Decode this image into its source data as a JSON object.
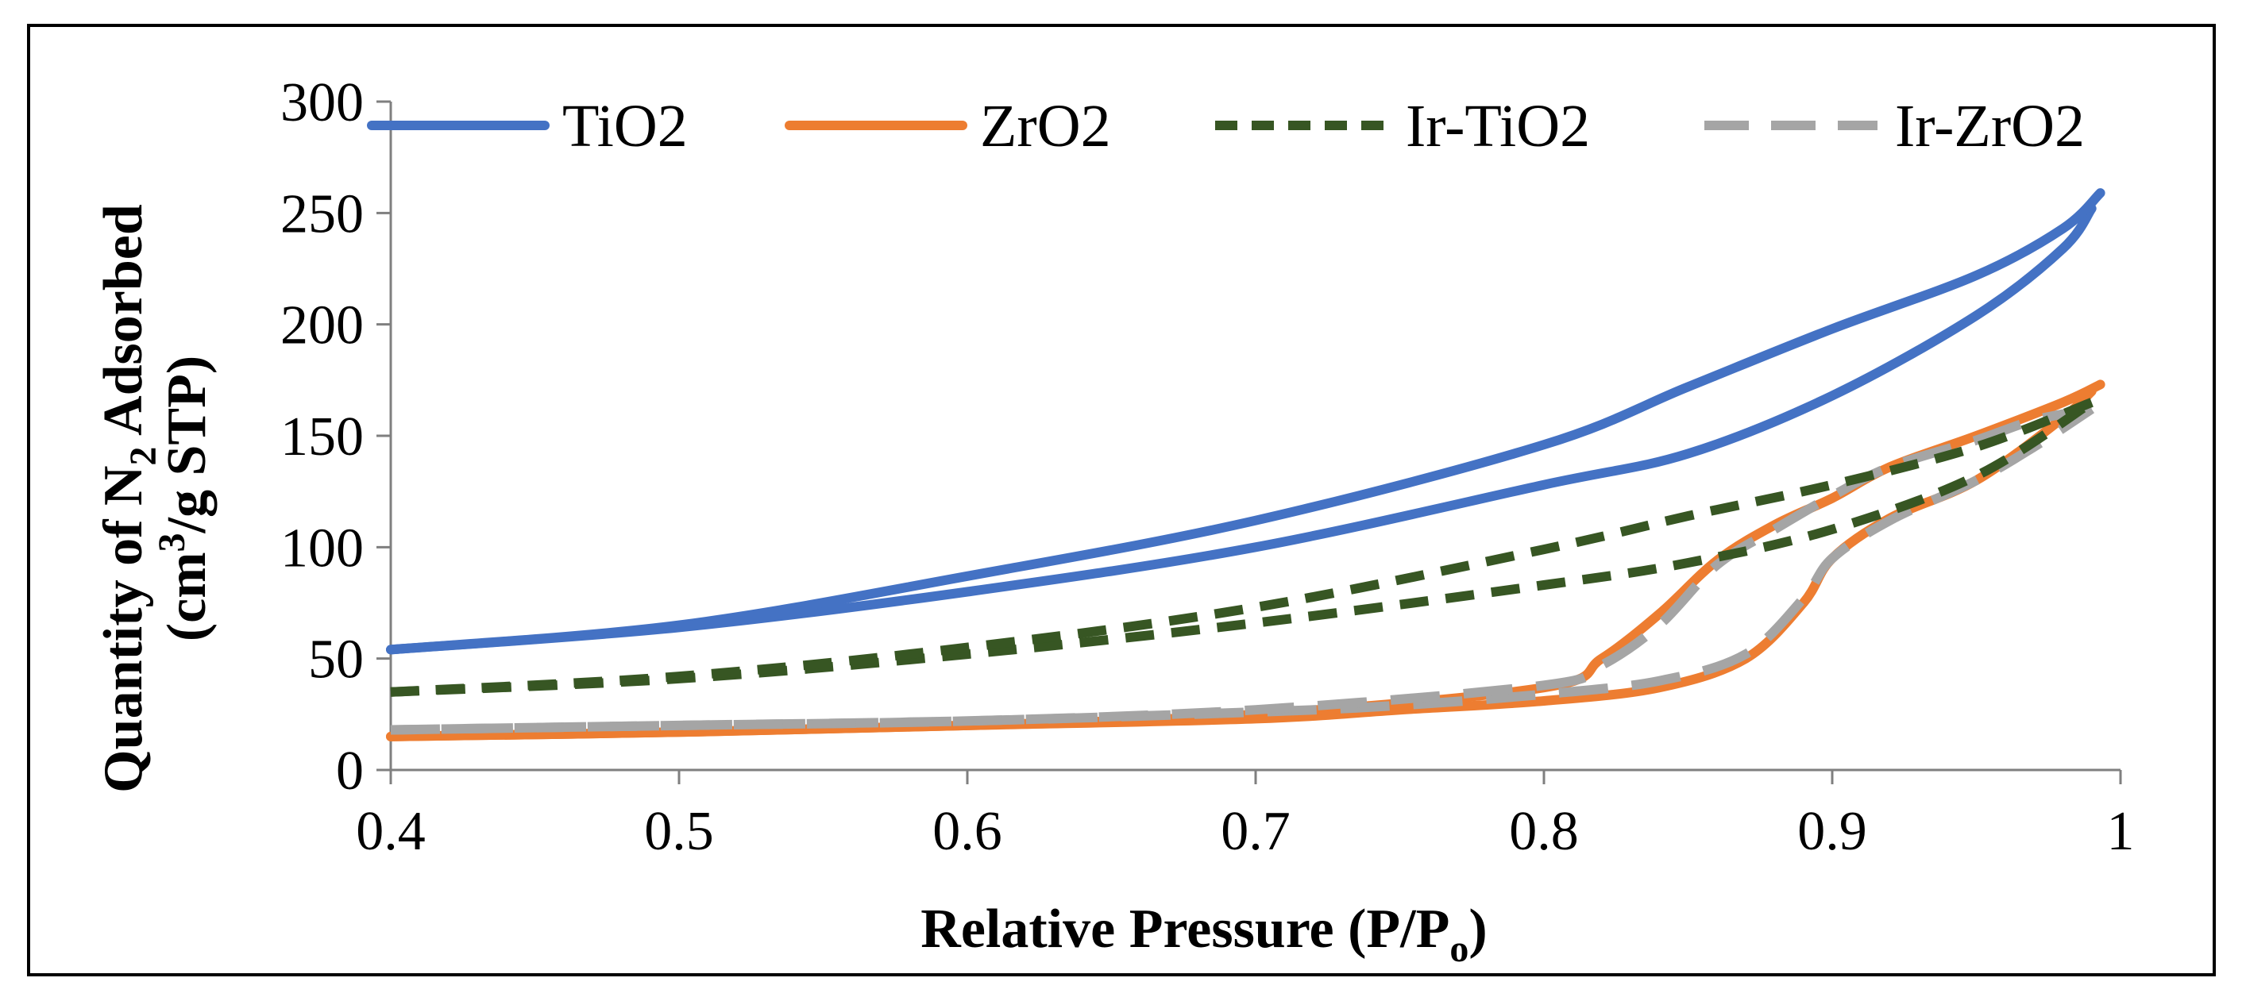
{
  "chart_data": {
    "type": "line",
    "title": "",
    "xlabel": "Relative Pressure (P/Po)",
    "xlabel_main": "Relative Pressure (P/P",
    "xlabel_sub": "o",
    "xlabel_tail": ")",
    "ylabel_line1_main": "Quantity of N",
    "ylabel_line1_sub": "2",
    "ylabel_line1_tail": " Adsorbed",
    "ylabel_line2_pre": "(cm",
    "ylabel_line2_sup": "3",
    "ylabel_line2_tail": "/g STP)",
    "xlim": [
      0.4,
      1.0
    ],
    "ylim": [
      0,
      300
    ],
    "x_ticks": [
      "0.4",
      "0.5",
      "0.6",
      "0.7",
      "0.8",
      "0.9",
      "1"
    ],
    "y_ticks": [
      "0",
      "50",
      "100",
      "150",
      "200",
      "250",
      "300"
    ],
    "legend_position": "top",
    "grid": false,
    "series": [
      {
        "name": "TiO2",
        "color": "#4472C4",
        "dash": "solid",
        "adsorption": [
          [
            0.4,
            54
          ],
          [
            0.5,
            64
          ],
          [
            0.6,
            80
          ],
          [
            0.7,
            100
          ],
          [
            0.8,
            128
          ],
          [
            0.85,
            142
          ],
          [
            0.9,
            168
          ],
          [
            0.95,
            204
          ],
          [
            0.98,
            234
          ],
          [
            0.99,
            252
          ]
        ],
        "desorption": [
          [
            0.993,
            259
          ],
          [
            0.98,
            243
          ],
          [
            0.95,
            222
          ],
          [
            0.9,
            198
          ],
          [
            0.85,
            172
          ],
          [
            0.8,
            146
          ],
          [
            0.7,
            112
          ],
          [
            0.6,
            87
          ],
          [
            0.5,
            65
          ],
          [
            0.4,
            54
          ]
        ]
      },
      {
        "name": "ZrO2",
        "color": "#ED7D31",
        "dash": "solid",
        "adsorption": [
          [
            0.4,
            15
          ],
          [
            0.5,
            17
          ],
          [
            0.6,
            20
          ],
          [
            0.7,
            23
          ],
          [
            0.75,
            27
          ],
          [
            0.8,
            31
          ],
          [
            0.84,
            37
          ],
          [
            0.87,
            50
          ],
          [
            0.89,
            75
          ],
          [
            0.9,
            95
          ],
          [
            0.92,
            113
          ],
          [
            0.95,
            130
          ],
          [
            0.98,
            158
          ],
          [
            0.99,
            170
          ]
        ],
        "desorption": [
          [
            0.993,
            173
          ],
          [
            0.98,
            165
          ],
          [
            0.95,
            150
          ],
          [
            0.92,
            136
          ],
          [
            0.9,
            122
          ],
          [
            0.88,
            110
          ],
          [
            0.86,
            94
          ],
          [
            0.84,
            70
          ],
          [
            0.82,
            50
          ],
          [
            0.8,
            37
          ],
          [
            0.7,
            25
          ],
          [
            0.6,
            20
          ],
          [
            0.5,
            17
          ],
          [
            0.4,
            15
          ]
        ]
      },
      {
        "name": "Ir-TiO2",
        "color": "#375623",
        "dash": "dashed",
        "adsorption": [
          [
            0.4,
            35
          ],
          [
            0.5,
            41
          ],
          [
            0.6,
            52
          ],
          [
            0.7,
            66
          ],
          [
            0.8,
            83
          ],
          [
            0.85,
            93
          ],
          [
            0.9,
            108
          ],
          [
            0.95,
            132
          ],
          [
            0.99,
            165
          ]
        ],
        "desorption": [
          [
            0.99,
            165
          ],
          [
            0.95,
            145
          ],
          [
            0.9,
            128
          ],
          [
            0.85,
            114
          ],
          [
            0.8,
            99
          ],
          [
            0.7,
            73
          ],
          [
            0.6,
            55
          ],
          [
            0.5,
            42
          ],
          [
            0.4,
            35
          ]
        ]
      },
      {
        "name": "Ir-ZrO2",
        "color": "#A5A5A5",
        "dash": "long-dash",
        "adsorption": [
          [
            0.4,
            18
          ],
          [
            0.5,
            20
          ],
          [
            0.6,
            22
          ],
          [
            0.7,
            26
          ],
          [
            0.75,
            29
          ],
          [
            0.8,
            34
          ],
          [
            0.84,
            40
          ],
          [
            0.87,
            52
          ],
          [
            0.89,
            77
          ],
          [
            0.9,
            95
          ],
          [
            0.92,
            112
          ],
          [
            0.95,
            130
          ],
          [
            0.97,
            145
          ],
          [
            0.99,
            162
          ]
        ],
        "desorption": [
          [
            0.99,
            162
          ],
          [
            0.97,
            157
          ],
          [
            0.95,
            148
          ],
          [
            0.92,
            136
          ],
          [
            0.9,
            123
          ],
          [
            0.88,
            108
          ],
          [
            0.86,
            92
          ],
          [
            0.84,
            65
          ],
          [
            0.82,
            47
          ],
          [
            0.8,
            38
          ],
          [
            0.7,
            27
          ],
          [
            0.6,
            22
          ],
          [
            0.5,
            20
          ],
          [
            0.4,
            18
          ]
        ]
      }
    ]
  }
}
